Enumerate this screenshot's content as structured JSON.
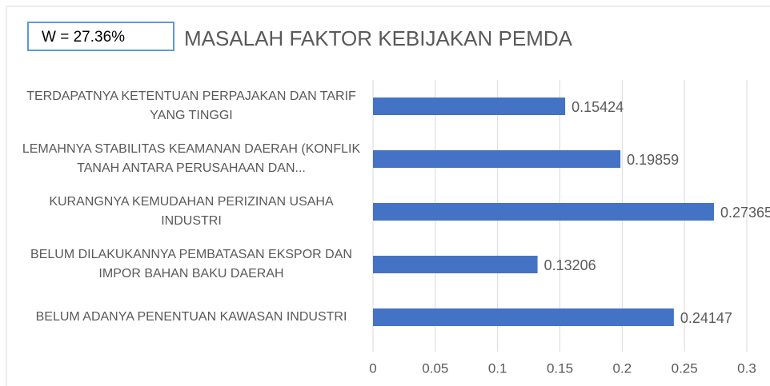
{
  "chart_data": {
    "type": "bar",
    "orientation": "horizontal",
    "annotation": "W = 27.36%",
    "title": "MASALAH FAKTOR KEBIJAKAN PEMDA",
    "categories": [
      "TERDAPATNYA KETENTUAN PERPAJAKAN DAN TARIF YANG TINGGI",
      "LEMAHNYA STABILITAS KEAMANAN DAERAH (KONFLIK TANAH ANTARA PERUSAHAAN DAN...",
      "KURANGNYA KEMUDAHAN PERIZINAN USAHA INDUSTRI",
      "BELUM DILAKUKANNYA PEMBATASAN EKSPOR DAN IMPOR BAHAN BAKU DAERAH",
      "BELUM ADANYA PENENTUAN KAWASAN INDUSTRI"
    ],
    "values": [
      0.15424,
      0.19859,
      0.27365,
      0.13206,
      0.24147
    ],
    "color": "#4472c4",
    "xlim": [
      0,
      0.3
    ],
    "xticks": [
      0,
      0.05,
      0.1,
      0.15,
      0.2,
      0.25,
      0.3
    ],
    "grid": true
  }
}
